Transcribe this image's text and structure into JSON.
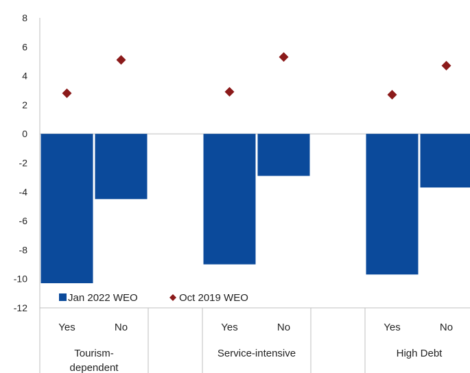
{
  "chart_data": {
    "type": "bar",
    "ylim": [
      -12,
      8
    ],
    "yticks": [
      -12,
      -10,
      -8,
      -6,
      -4,
      -2,
      0,
      2,
      4,
      6,
      8
    ],
    "grid": false,
    "legend_position": "bottom-left",
    "groups": [
      {
        "label": "Tourism-\ndependent",
        "categories": [
          "Yes",
          "No"
        ]
      },
      {
        "label": "Service-intensive",
        "categories": [
          "Yes",
          "No"
        ]
      },
      {
        "label": "High Debt",
        "categories": [
          "Yes",
          "No"
        ]
      }
    ],
    "series": [
      {
        "name": "Jan 2022 WEO",
        "kind": "bar",
        "color": "#0B4A9B",
        "values": [
          -10.3,
          -4.5,
          -9.0,
          -2.9,
          -9.7,
          -3.7
        ]
      },
      {
        "name": "Oct 2019 WEO",
        "kind": "marker",
        "marker": "diamond",
        "color": "#8B1A1A",
        "values": [
          2.8,
          5.1,
          2.9,
          5.3,
          2.7,
          4.7
        ]
      }
    ]
  }
}
